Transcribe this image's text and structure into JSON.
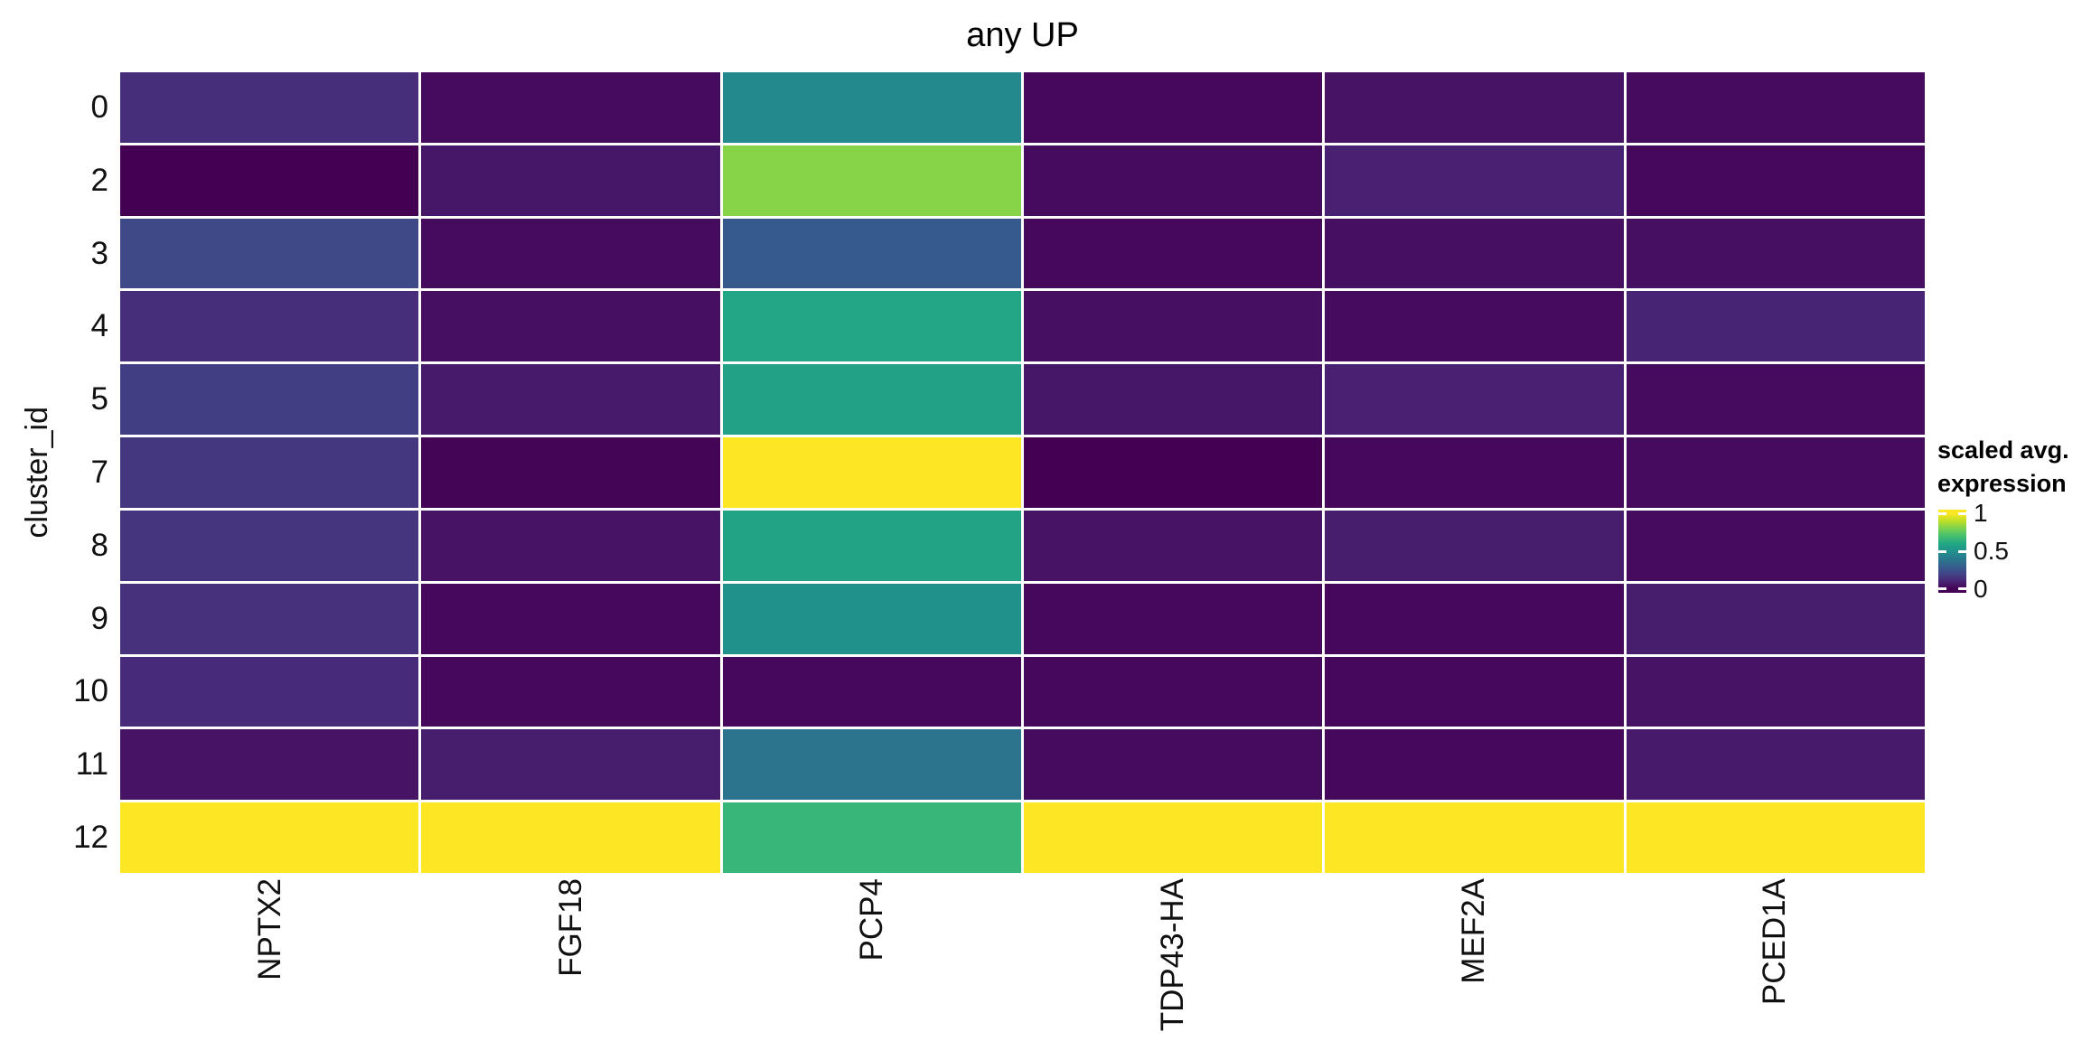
{
  "chart_data": {
    "type": "heatmap",
    "title": "any UP",
    "xlabel": "",
    "ylabel": "cluster_id",
    "rows": [
      "0",
      "2",
      "3",
      "4",
      "5",
      "7",
      "8",
      "9",
      "10",
      "11",
      "12"
    ],
    "columns": [
      "NPTX2",
      "FGF18",
      "PCP4",
      "TDP43-HA",
      "MEF2A",
      "PCED1A"
    ],
    "values": [
      [
        0.13,
        0.03,
        0.47,
        0.02,
        0.05,
        0.03
      ],
      [
        0.0,
        0.06,
        0.82,
        0.03,
        0.09,
        0.02
      ],
      [
        0.22,
        0.03,
        0.28,
        0.02,
        0.04,
        0.04
      ],
      [
        0.13,
        0.04,
        0.59,
        0.04,
        0.03,
        0.1
      ],
      [
        0.18,
        0.07,
        0.57,
        0.06,
        0.09,
        0.03
      ],
      [
        0.16,
        0.01,
        1.0,
        0.0,
        0.02,
        0.03
      ],
      [
        0.15,
        0.05,
        0.58,
        0.05,
        0.08,
        0.03
      ],
      [
        0.14,
        0.02,
        0.5,
        0.02,
        0.02,
        0.08
      ],
      [
        0.12,
        0.02,
        0.02,
        0.02,
        0.02,
        0.05
      ],
      [
        0.05,
        0.08,
        0.38,
        0.03,
        0.02,
        0.07
      ],
      [
        1.0,
        1.0,
        0.66,
        1.0,
        1.0,
        1.0
      ]
    ],
    "value_range": [
      0,
      1
    ],
    "legend": {
      "title_line1": "scaled avg.",
      "title_line2": "expression",
      "tick_labels": [
        "1",
        "0.5",
        "0"
      ],
      "tick_values": [
        1,
        0.5,
        0
      ],
      "position": "right"
    },
    "colormap": {
      "name": "viridis",
      "anchors": [
        "#440154",
        "#482475",
        "#414487",
        "#355f8d",
        "#2a788e",
        "#21918c",
        "#22a884",
        "#44bf70",
        "#7ad151",
        "#bddf26",
        "#fde725"
      ]
    },
    "layout": {
      "grid_on": false,
      "cell_gap_color": "#ffffff",
      "background": "#ffffff"
    }
  }
}
